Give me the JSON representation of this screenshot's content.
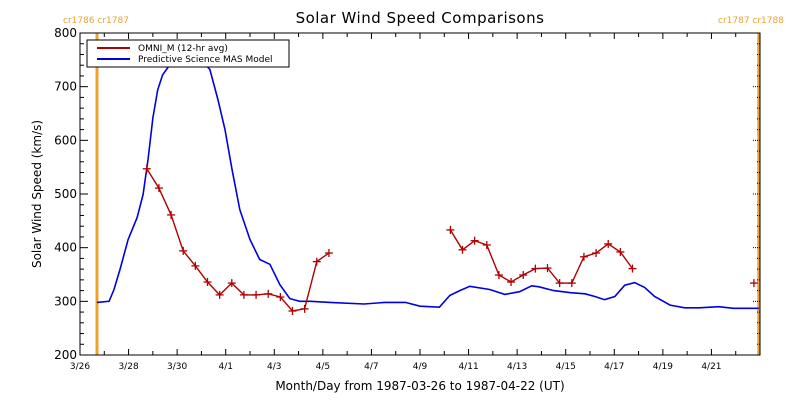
{
  "chart_data": {
    "type": "line",
    "title": "Solar Wind Speed Comparisons",
    "xlabel": "Month/Day from 1987-03-26 to 1987-04-22 (UT)",
    "ylabel": "Solar Wind Speed (km/s)",
    "x_units": "days since 1987-03-26 00:00 UT",
    "xlim": [
      0,
      28
    ],
    "ylim": [
      200,
      800
    ],
    "y_ticks": [
      200,
      300,
      400,
      500,
      600,
      700,
      800
    ],
    "y_tick_labels": [
      "200",
      "300",
      "400",
      "500",
      "600",
      "700",
      "800"
    ],
    "x_ticks": [
      0,
      2,
      4,
      6,
      8,
      10,
      12,
      14,
      16,
      18,
      20,
      22,
      24,
      26
    ],
    "x_tick_labels": [
      "3/26",
      "3/28",
      "3/30",
      "4/1",
      "4/3",
      "4/5",
      "4/7",
      "4/9",
      "4/11",
      "4/13",
      "4/15",
      "4/17",
      "4/19",
      "4/21"
    ],
    "grid": false,
    "legend_position": "top-left",
    "carrington_markers": [
      {
        "x": 0.7,
        "label": "cr1786 cr1787",
        "color": "#f0a030"
      },
      {
        "x": 27.95,
        "label": "cr1787 cr1788",
        "color": "#f0a030"
      }
    ],
    "series": [
      {
        "name": "OMNI_M (12-hr avg)",
        "color": "#b00000",
        "marker": "+",
        "segments": [
          [
            [
              2.75,
              547
            ],
            [
              3.25,
              511
            ],
            [
              3.75,
              461
            ],
            [
              4.25,
              394
            ],
            [
              4.75,
              366
            ],
            [
              5.25,
              336
            ],
            [
              5.75,
              312
            ],
            [
              6.25,
              334
            ],
            [
              6.75,
              312
            ],
            [
              7.25,
              312
            ],
            [
              7.75,
              314
            ],
            [
              8.25,
              308
            ],
            [
              8.75,
              282
            ],
            [
              9.25,
              286
            ],
            [
              9.75,
              374
            ],
            [
              10.25,
              390
            ]
          ],
          [
            [
              15.25,
              433
            ],
            [
              15.75,
              396
            ],
            [
              16.25,
              413
            ],
            [
              16.75,
              405
            ],
            [
              17.25,
              349
            ],
            [
              17.75,
              336
            ],
            [
              18.25,
              349
            ],
            [
              18.75,
              361
            ],
            [
              19.25,
              362
            ],
            [
              19.75,
              334
            ],
            [
              20.25,
              334
            ],
            [
              20.75,
              383
            ],
            [
              21.25,
              390
            ],
            [
              21.75,
              407
            ],
            [
              22.25,
              392
            ],
            [
              22.75,
              361
            ]
          ],
          [
            [
              27.75,
              334
            ]
          ]
        ]
      },
      {
        "name": "Predictive Science MAS Model",
        "color": "#0000e0",
        "marker": "",
        "segments": [
          [
            [
              0.7,
              298
            ],
            [
              1.2,
              300
            ],
            [
              1.4,
              322
            ],
            [
              1.65,
              360
            ],
            [
              1.98,
              415
            ],
            [
              2.35,
              456
            ],
            [
              2.6,
              499
            ],
            [
              2.8,
              564
            ],
            [
              3.0,
              642
            ],
            [
              3.2,
              694
            ],
            [
              3.4,
              722
            ],
            [
              3.7,
              741
            ],
            [
              4.1,
              754
            ],
            [
              4.5,
              756
            ],
            [
              4.9,
              754
            ],
            [
              5.35,
              732
            ],
            [
              5.68,
              676
            ],
            [
              5.97,
              620
            ],
            [
              6.26,
              546
            ],
            [
              6.58,
              471
            ],
            [
              7.0,
              415
            ],
            [
              7.4,
              378
            ],
            [
              7.82,
              369
            ],
            [
              8.23,
              331
            ],
            [
              8.64,
              305
            ],
            [
              9.05,
              300
            ],
            [
              9.5,
              300
            ],
            [
              10.3,
              298
            ],
            [
              11.7,
              295
            ],
            [
              12.55,
              298
            ],
            [
              13.4,
              298
            ],
            [
              14.0,
              291
            ],
            [
              14.8,
              289
            ],
            [
              15.23,
              311
            ],
            [
              15.64,
              320
            ],
            [
              16.05,
              328
            ],
            [
              16.87,
              322
            ],
            [
              17.49,
              313
            ],
            [
              18.1,
              318
            ],
            [
              18.6,
              329
            ],
            [
              18.9,
              327
            ],
            [
              19.5,
              320
            ],
            [
              20.2,
              316
            ],
            [
              20.8,
              314
            ],
            [
              21.2,
              309
            ],
            [
              21.6,
              303
            ],
            [
              22.02,
              309
            ],
            [
              22.43,
              330
            ],
            [
              22.84,
              335
            ],
            [
              23.25,
              326
            ],
            [
              23.66,
              309
            ],
            [
              24.3,
              293
            ],
            [
              24.9,
              288
            ],
            [
              25.5,
              288
            ],
            [
              26.3,
              290
            ],
            [
              26.9,
              287
            ],
            [
              27.95,
              287
            ]
          ]
        ]
      }
    ]
  }
}
